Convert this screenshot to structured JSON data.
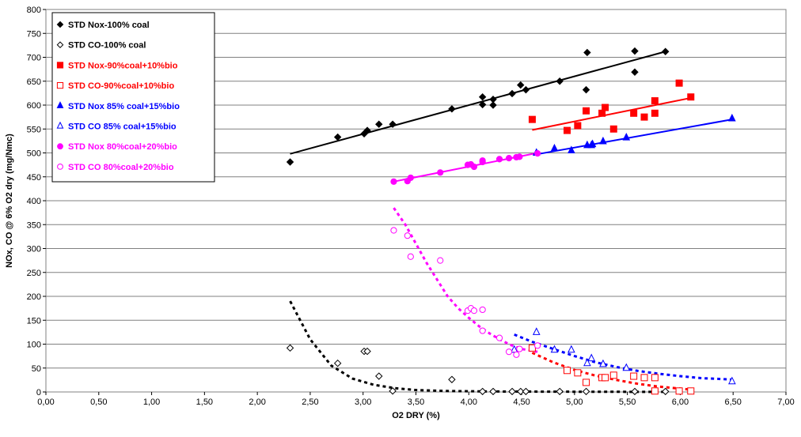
{
  "chart_data": {
    "type": "scatter",
    "xlabel": "O2 DRY (%)",
    "ylabel": "NOx, CO @ 6% O2 dry (mg/Nmc)",
    "xlim": [
      0,
      7
    ],
    "ylim": [
      0,
      800
    ],
    "x_ticks": [
      "0,00",
      "0,50",
      "1,00",
      "1,50",
      "2,00",
      "2,50",
      "3,00",
      "3,50",
      "4,00",
      "4,50",
      "5,00",
      "5,50",
      "6,00",
      "6,50",
      "7,00"
    ],
    "y_ticks": [
      "0",
      "50",
      "100",
      "150",
      "200",
      "250",
      "300",
      "350",
      "400",
      "450",
      "500",
      "550",
      "600",
      "650",
      "700",
      "750",
      "800"
    ],
    "grid": "horizontal",
    "legend_position": "top-left",
    "series": [
      {
        "name": "STD Nox-100% coal",
        "color": "#000000",
        "marker": "diamond",
        "filled": true,
        "points": [
          [
            2.31,
            481
          ],
          [
            2.76,
            533
          ],
          [
            3.01,
            540
          ],
          [
            3.04,
            547
          ],
          [
            3.15,
            560
          ],
          [
            3.28,
            560
          ],
          [
            3.84,
            592
          ],
          [
            4.13,
            617
          ],
          [
            4.13,
            601
          ],
          [
            4.23,
            600
          ],
          [
            4.23,
            612
          ],
          [
            4.41,
            624
          ],
          [
            4.49,
            642
          ],
          [
            4.54,
            632
          ],
          [
            4.86,
            650
          ],
          [
            5.11,
            632
          ],
          [
            5.12,
            710
          ],
          [
            5.57,
            713
          ],
          [
            5.57,
            669
          ],
          [
            5.86,
            712
          ]
        ],
        "trend": {
          "kind": "line",
          "from": [
            2.31,
            498
          ],
          "to": [
            5.86,
            712
          ]
        }
      },
      {
        "name": "STD CO-100% coal",
        "color": "#000000",
        "marker": "diamond",
        "filled": false,
        "points": [
          [
            2.31,
            92
          ],
          [
            2.76,
            60
          ],
          [
            3.01,
            85
          ],
          [
            3.04,
            85
          ],
          [
            3.15,
            33
          ],
          [
            3.28,
            2
          ],
          [
            3.84,
            26
          ],
          [
            4.13,
            1
          ],
          [
            4.23,
            1
          ],
          [
            4.41,
            1
          ],
          [
            4.49,
            1
          ],
          [
            4.54,
            1
          ],
          [
            4.86,
            1
          ],
          [
            5.11,
            1
          ],
          [
            5.57,
            1
          ],
          [
            5.86,
            1
          ]
        ],
        "trend": {
          "kind": "curve",
          "points": [
            [
              2.31,
              190
            ],
            [
              2.5,
              110
            ],
            [
              2.7,
              55
            ],
            [
              2.9,
              28
            ],
            [
              3.1,
              15
            ],
            [
              3.3,
              8
            ],
            [
              3.5,
              4
            ],
            [
              3.8,
              2
            ],
            [
              4.2,
              1
            ],
            [
              5.0,
              0.5
            ],
            [
              5.86,
              0.2
            ]
          ]
        }
      },
      {
        "name": "STD Nox-90%coal+10%bio",
        "color": "#ff0000",
        "marker": "square",
        "filled": true,
        "points": [
          [
            4.6,
            570
          ],
          [
            4.93,
            547
          ],
          [
            5.03,
            557
          ],
          [
            5.11,
            588
          ],
          [
            5.26,
            583
          ],
          [
            5.29,
            595
          ],
          [
            5.37,
            550
          ],
          [
            5.56,
            583
          ],
          [
            5.66,
            575
          ],
          [
            5.76,
            609
          ],
          [
            5.76,
            583
          ],
          [
            5.99,
            646
          ],
          [
            6.1,
            617
          ]
        ],
        "trend": {
          "kind": "line",
          "from": [
            4.6,
            548
          ],
          "to": [
            6.1,
            615
          ]
        }
      },
      {
        "name": "STD CO-90%coal+10%bio",
        "color": "#ff0000",
        "marker": "square",
        "filled": false,
        "points": [
          [
            4.6,
            92
          ],
          [
            4.93,
            45
          ],
          [
            5.03,
            40
          ],
          [
            5.11,
            20
          ],
          [
            5.26,
            30
          ],
          [
            5.29,
            30
          ],
          [
            5.37,
            35
          ],
          [
            5.56,
            33
          ],
          [
            5.66,
            30
          ],
          [
            5.76,
            30
          ],
          [
            5.76,
            2
          ],
          [
            5.99,
            2
          ],
          [
            6.1,
            2
          ]
        ],
        "trend": {
          "kind": "curve",
          "points": [
            [
              4.6,
              82
            ],
            [
              4.8,
              62
            ],
            [
              5.0,
              46
            ],
            [
              5.2,
              34
            ],
            [
              5.4,
              25
            ],
            [
              5.6,
              17
            ],
            [
              5.8,
              11
            ],
            [
              6.0,
              7
            ],
            [
              6.1,
              5
            ]
          ]
        }
      },
      {
        "name": "STD Nox 85% coal+15%bio",
        "color": "#0000ff",
        "marker": "triangle",
        "filled": true,
        "points": [
          [
            4.64,
            500
          ],
          [
            4.81,
            509
          ],
          [
            4.97,
            505
          ],
          [
            5.12,
            516
          ],
          [
            5.16,
            516
          ],
          [
            5.17,
            518
          ],
          [
            5.27,
            524
          ],
          [
            5.49,
            532
          ],
          [
            6.49,
            572
          ]
        ],
        "trend": {
          "kind": "line",
          "from": [
            4.64,
            497
          ],
          "to": [
            6.49,
            570
          ]
        }
      },
      {
        "name": "STD CO 85% coal+15%bio",
        "color": "#0000ff",
        "marker": "triangle",
        "filled": false,
        "points": [
          [
            4.43,
            88
          ],
          [
            4.64,
            125
          ],
          [
            4.81,
            88
          ],
          [
            4.97,
            88
          ],
          [
            5.12,
            60
          ],
          [
            5.16,
            70
          ],
          [
            5.27,
            58
          ],
          [
            5.49,
            50
          ],
          [
            6.49,
            22
          ]
        ],
        "trend": {
          "kind": "curve",
          "points": [
            [
              4.43,
              120
            ],
            [
              4.6,
              105
            ],
            [
              4.8,
              90
            ],
            [
              5.0,
              75
            ],
            [
              5.2,
              62
            ],
            [
              5.4,
              52
            ],
            [
              5.6,
              44
            ],
            [
              5.8,
              38
            ],
            [
              6.0,
              33
            ],
            [
              6.2,
              29
            ],
            [
              6.49,
              26
            ]
          ]
        }
      },
      {
        "name": "STD Nox 80%coal+20%bio",
        "color": "#ff00ff",
        "marker": "circle",
        "filled": true,
        "points": [
          [
            3.29,
            440
          ],
          [
            3.42,
            441
          ],
          [
            3.45,
            448
          ],
          [
            3.73,
            459
          ],
          [
            3.99,
            475
          ],
          [
            4.02,
            476
          ],
          [
            4.05,
            471
          ],
          [
            4.13,
            481
          ],
          [
            4.13,
            484
          ],
          [
            4.29,
            487
          ],
          [
            4.38,
            489
          ],
          [
            4.45,
            491
          ],
          [
            4.48,
            492
          ],
          [
            4.65,
            499
          ]
        ],
        "trend": {
          "kind": "line",
          "from": [
            3.29,
            440
          ],
          "to": [
            4.65,
            500
          ]
        }
      },
      {
        "name": "STD CO 80%coal+20%bio",
        "color": "#ff00ff",
        "marker": "circle",
        "filled": false,
        "points": [
          [
            3.29,
            338
          ],
          [
            3.42,
            327
          ],
          [
            3.45,
            283
          ],
          [
            3.73,
            275
          ],
          [
            3.99,
            170
          ],
          [
            4.02,
            175
          ],
          [
            4.05,
            170
          ],
          [
            4.13,
            172
          ],
          [
            4.13,
            128
          ],
          [
            4.29,
            113
          ],
          [
            4.38,
            84
          ],
          [
            4.45,
            78
          ],
          [
            4.48,
            90
          ],
          [
            4.65,
            97
          ]
        ],
        "trend": {
          "kind": "curve",
          "points": [
            [
              3.29,
              385
            ],
            [
              3.4,
              350
            ],
            [
              3.5,
              310
            ],
            [
              3.6,
              270
            ],
            [
              3.7,
              235
            ],
            [
              3.8,
              200
            ],
            [
              3.9,
              175
            ],
            [
              4.0,
              155
            ],
            [
              4.1,
              137
            ],
            [
              4.2,
              122
            ],
            [
              4.3,
              109
            ],
            [
              4.4,
              98
            ],
            [
              4.5,
              90
            ],
            [
              4.65,
              84
            ]
          ]
        }
      }
    ]
  }
}
